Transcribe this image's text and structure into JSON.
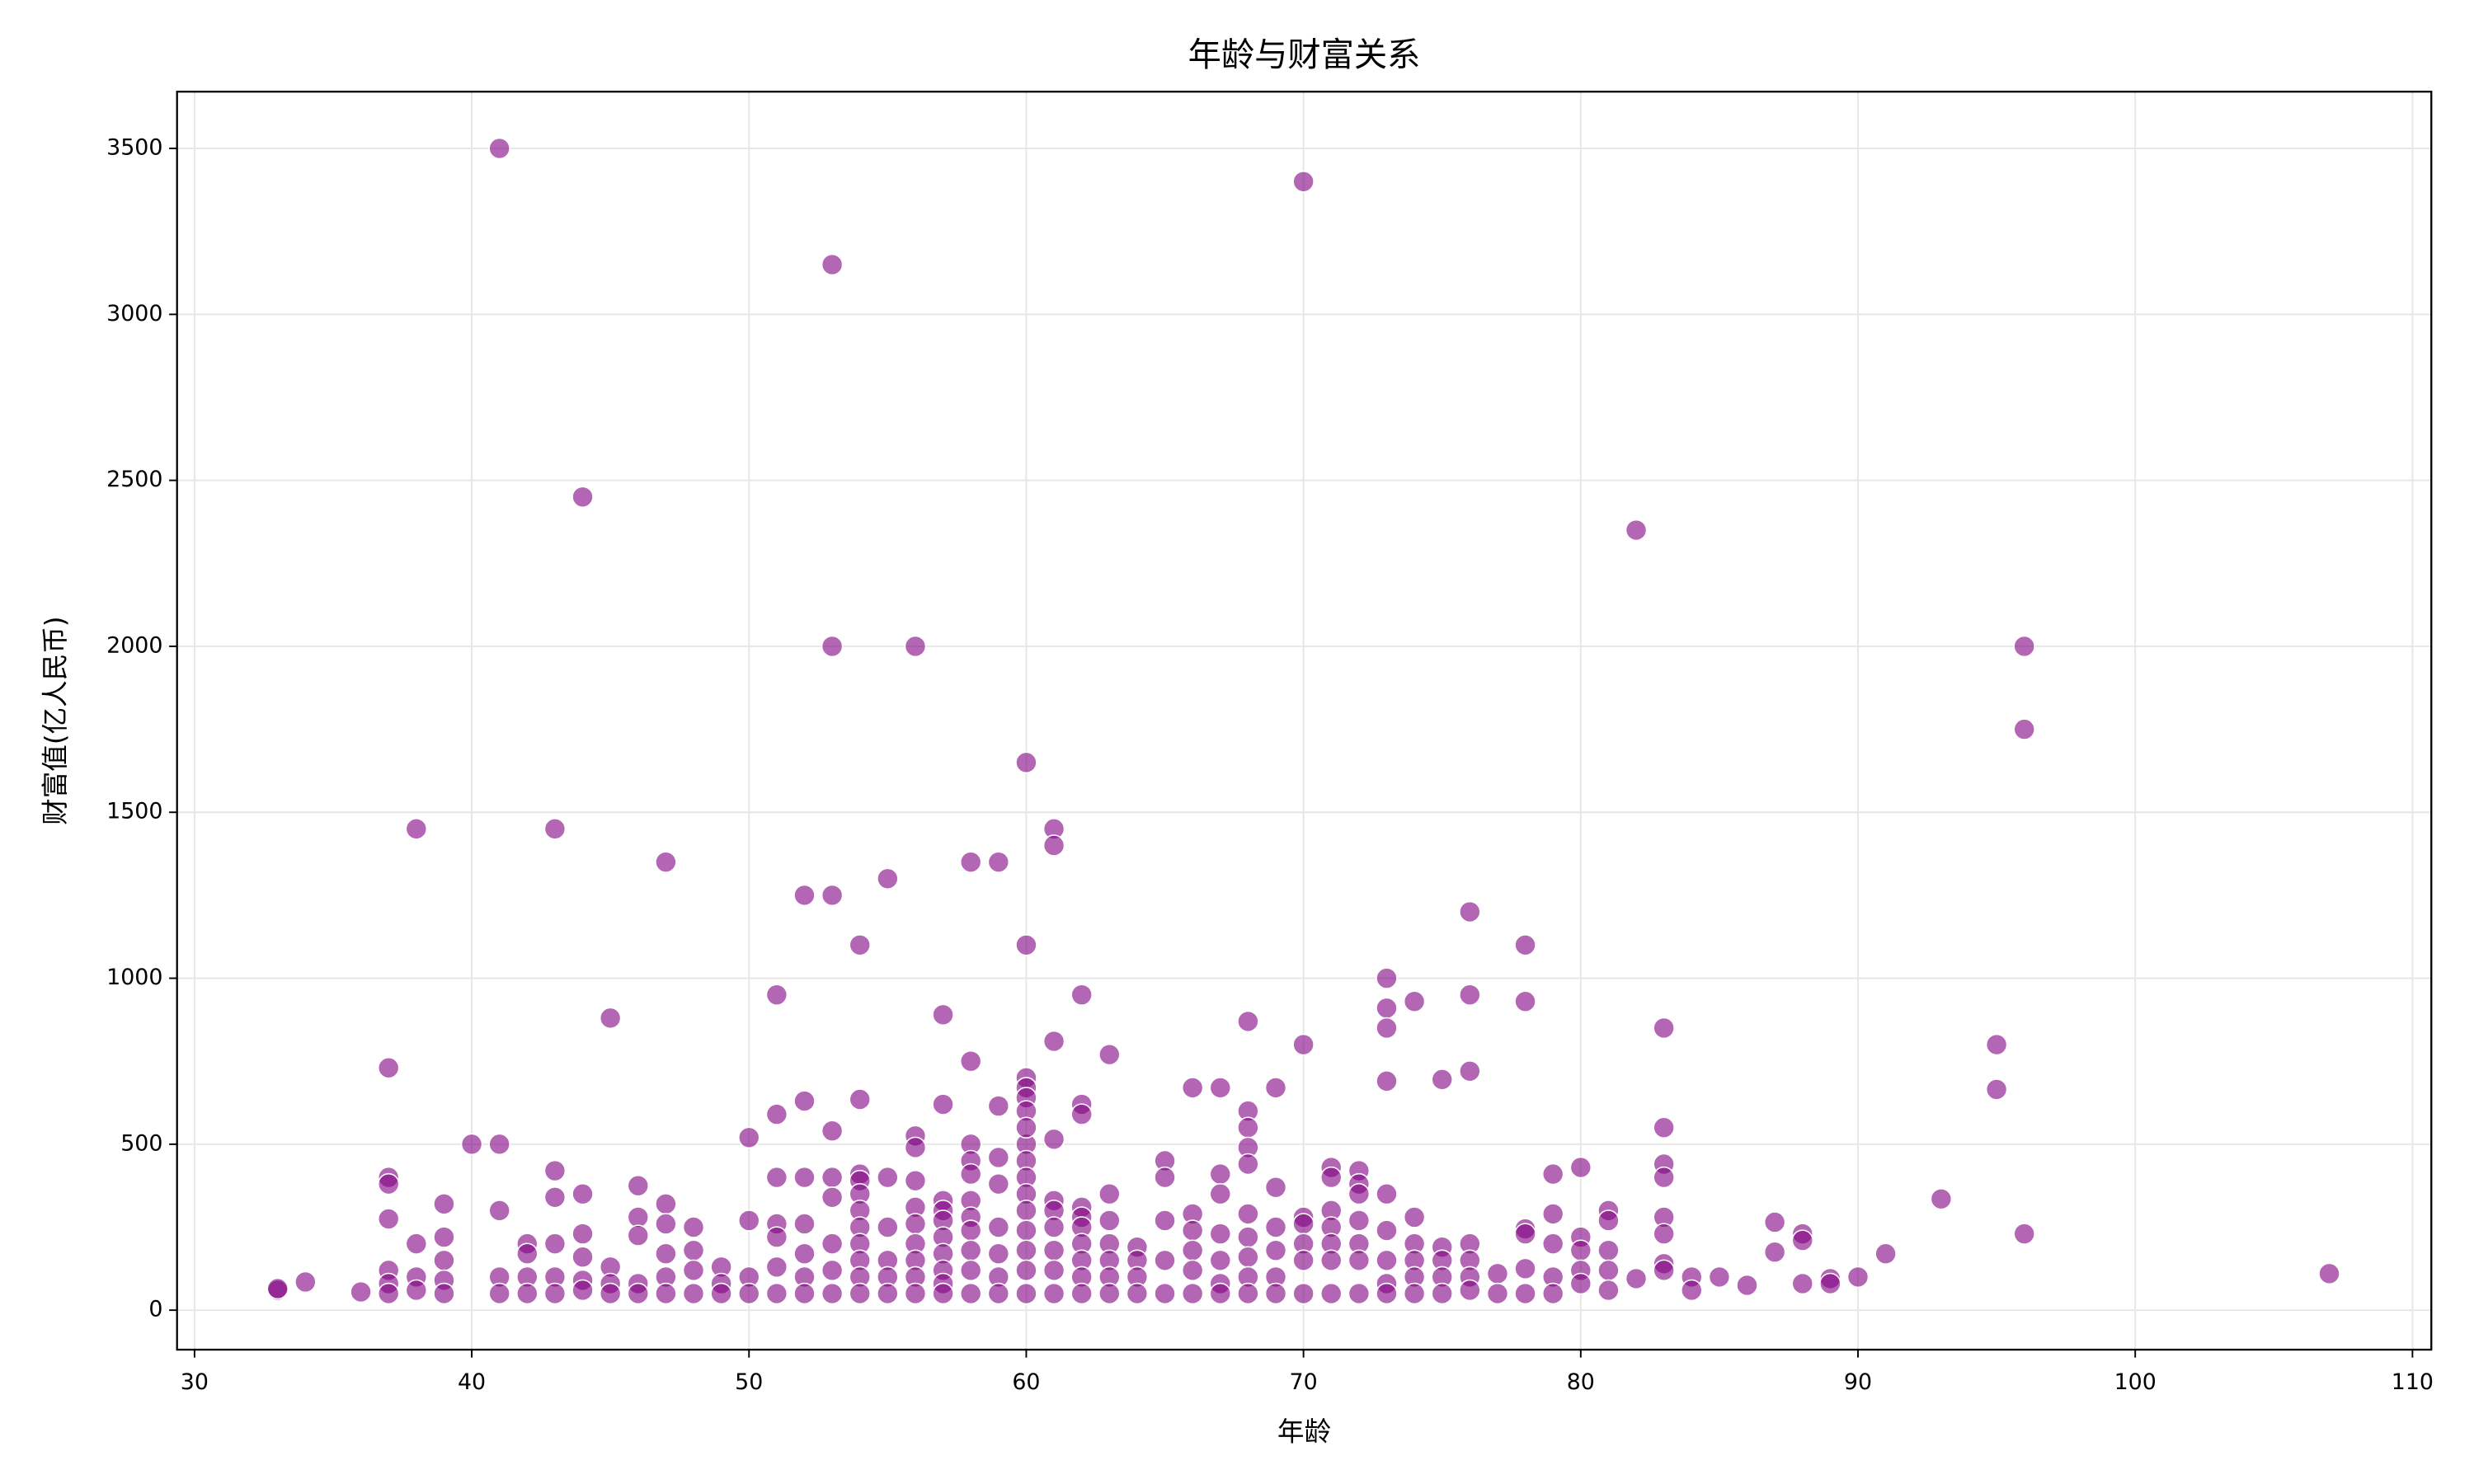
{
  "chart_data": {
    "type": "scatter",
    "title": "年龄与财富关系",
    "x_label": "年龄",
    "y_label": "财富值(亿人民币)",
    "color": "#800080",
    "grid": true,
    "xlim": [
      29.37,
      110.68
    ],
    "ylim": [
      -119,
      3671
    ],
    "xticks": [
      30,
      40,
      50,
      60,
      70,
      80,
      90,
      100,
      110
    ],
    "yticks": [
      0,
      500,
      1000,
      1500,
      2000,
      2500,
      3000,
      3500
    ],
    "x": [
      41,
      70,
      53,
      44,
      82,
      53,
      56,
      96,
      96,
      60,
      38,
      43,
      61,
      61,
      47,
      58,
      59,
      55,
      52,
      53,
      76,
      54,
      60,
      78,
      73,
      51,
      62,
      76,
      74,
      78,
      73,
      45,
      57,
      68,
      73,
      83,
      61,
      70,
      95,
      63,
      58,
      37,
      76,
      60,
      75,
      73,
      60,
      66,
      67,
      69,
      95,
      60,
      54,
      52,
      57,
      62,
      59,
      51,
      62,
      68,
      68,
      83,
      53,
      56,
      50,
      61,
      40,
      41,
      56,
      58,
      60,
      68,
      33,
      33,
      34,
      36,
      37,
      37,
      37,
      37,
      37,
      37,
      38,
      38,
      38,
      39,
      39,
      39,
      39,
      39,
      41,
      41,
      41,
      42,
      42,
      42,
      42,
      43,
      43,
      43,
      43,
      43,
      44,
      44,
      44,
      44,
      44,
      45,
      45,
      45,
      46,
      46,
      46,
      46,
      46,
      47,
      47,
      47,
      47,
      47,
      48,
      48,
      48,
      48,
      49,
      49,
      49,
      50,
      50,
      50,
      51,
      51,
      51,
      51,
      51,
      52,
      52,
      52,
      52,
      52,
      53,
      53,
      53,
      53,
      53,
      54,
      54,
      54,
      54,
      54,
      54,
      54,
      54,
      54,
      55,
      55,
      55,
      55,
      55,
      56,
      56,
      56,
      56,
      56,
      56,
      56,
      57,
      57,
      57,
      57,
      57,
      57,
      57,
      57,
      58,
      58,
      58,
      58,
      58,
      58,
      58,
      58,
      59,
      59,
      59,
      59,
      59,
      59,
      60,
      60,
      60,
      60,
      60,
      60,
      60,
      60,
      60,
      60,
      61,
      61,
      61,
      61,
      61,
      61,
      62,
      62,
      62,
      62,
      62,
      62,
      62,
      63,
      63,
      63,
      63,
      63,
      63,
      64,
      64,
      64,
      64,
      65,
      65,
      65,
      65,
      65,
      66,
      66,
      66,
      66,
      66,
      67,
      67,
      67,
      67,
      67,
      67,
      68,
      68,
      68,
      68,
      68,
      68,
      69,
      69,
      69,
      69,
      69,
      70,
      70,
      70,
      70,
      70,
      71,
      71,
      71,
      71,
      71,
      71,
      71,
      72,
      72,
      72,
      72,
      72,
      72,
      72,
      73,
      73,
      73,
      73,
      73,
      74,
      74,
      74,
      74,
      74,
      75,
      75,
      75,
      75,
      76,
      76,
      76,
      76,
      77,
      77,
      78,
      78,
      78,
      78,
      79,
      79,
      79,
      79,
      79,
      80,
      80,
      80,
      80,
      80,
      81,
      81,
      81,
      81,
      81,
      82,
      83,
      83,
      83,
      83,
      83,
      83,
      84,
      84,
      85,
      86,
      87,
      87,
      88,
      88,
      88,
      89,
      89,
      90,
      91,
      93,
      96,
      107
    ],
    "values": [
      3500,
      3400,
      3150,
      2450,
      2350,
      2000,
      2000,
      2000,
      1750,
      1650,
      1450,
      1450,
      1450,
      1400,
      1350,
      1350,
      1350,
      1300,
      1250,
      1250,
      1200,
      1100,
      1100,
      1100,
      1000,
      950,
      950,
      950,
      930,
      930,
      910,
      880,
      890,
      870,
      850,
      850,
      810,
      800,
      800,
      770,
      750,
      730,
      720,
      700,
      695,
      690,
      670,
      670,
      670,
      670,
      665,
      640,
      635,
      630,
      620,
      620,
      615,
      590,
      590,
      600,
      550,
      550,
      540,
      525,
      520,
      515,
      500,
      500,
      490,
      500,
      500,
      490,
      60,
      65,
      85,
      55,
      400,
      380,
      275,
      120,
      80,
      50,
      200,
      100,
      60,
      320,
      220,
      150,
      90,
      50,
      300,
      100,
      50,
      200,
      170,
      100,
      50,
      420,
      340,
      200,
      100,
      50,
      350,
      230,
      160,
      90,
      60,
      130,
      80,
      50,
      375,
      280,
      225,
      80,
      50,
      320,
      260,
      170,
      100,
      50,
      250,
      180,
      120,
      50,
      130,
      80,
      50,
      270,
      100,
      50,
      400,
      260,
      220,
      130,
      50,
      400,
      260,
      170,
      100,
      50,
      400,
      340,
      200,
      120,
      50,
      410,
      390,
      350,
      300,
      250,
      200,
      150,
      100,
      50,
      400,
      250,
      150,
      100,
      50,
      390,
      310,
      260,
      200,
      150,
      100,
      50,
      330,
      300,
      270,
      220,
      170,
      120,
      80,
      50,
      450,
      410,
      330,
      280,
      240,
      180,
      120,
      50,
      460,
      380,
      250,
      170,
      100,
      50,
      600,
      550,
      450,
      400,
      350,
      300,
      240,
      180,
      120,
      50,
      330,
      300,
      250,
      180,
      120,
      50,
      310,
      280,
      250,
      200,
      150,
      100,
      50,
      350,
      270,
      200,
      150,
      100,
      50,
      190,
      150,
      100,
      50,
      450,
      400,
      270,
      150,
      50,
      290,
      240,
      180,
      120,
      50,
      410,
      350,
      230,
      150,
      80,
      50,
      440,
      290,
      220,
      160,
      100,
      50,
      370,
      250,
      180,
      100,
      50,
      280,
      260,
      200,
      150,
      50,
      430,
      400,
      300,
      250,
      200,
      150,
      50,
      420,
      380,
      350,
      270,
      200,
      150,
      50,
      350,
      240,
      150,
      80,
      50,
      280,
      200,
      150,
      100,
      50,
      190,
      150,
      100,
      50,
      200,
      150,
      100,
      60,
      110,
      50,
      245,
      230,
      125,
      50,
      410,
      290,
      200,
      100,
      50,
      430,
      220,
      180,
      120,
      80,
      300,
      270,
      180,
      120,
      60,
      95,
      440,
      400,
      280,
      230,
      140,
      120,
      100,
      60,
      100,
      75,
      265,
      175,
      230,
      210,
      80,
      95,
      80,
      100,
      170,
      335,
      230,
      110
    ]
  }
}
